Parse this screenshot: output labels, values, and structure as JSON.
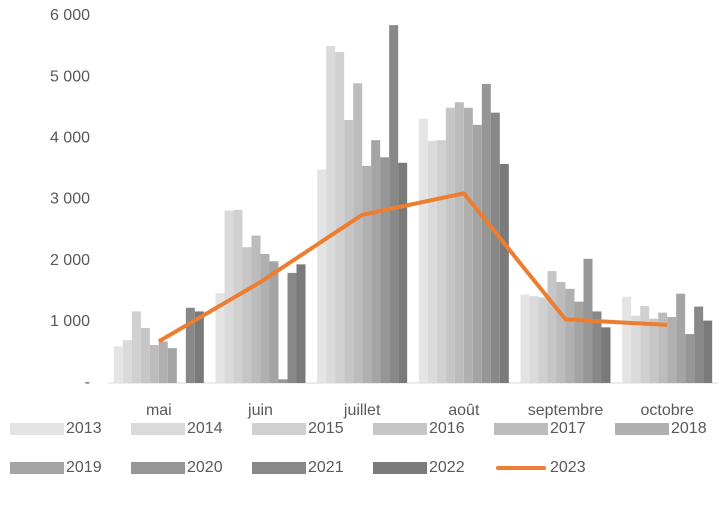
{
  "chart_data": {
    "type": "bar",
    "categories": [
      "mai",
      "juin",
      "juillet",
      "août",
      "septembre",
      "octobre"
    ],
    "series": [
      {
        "name": "2013",
        "color": "#e4e4e4",
        "values": [
          600,
          1470,
          3490,
          4320,
          1450,
          1410
        ]
      },
      {
        "name": "2014",
        "color": "#dadada",
        "values": [
          700,
          2820,
          5510,
          3960,
          1420,
          1100
        ]
      },
      {
        "name": "2015",
        "color": "#d0d0d0",
        "values": [
          1170,
          2830,
          5410,
          3970,
          1400,
          1260
        ]
      },
      {
        "name": "2016",
        "color": "#c6c6c6",
        "values": [
          900,
          2220,
          4300,
          4500,
          1830,
          1050
        ]
      },
      {
        "name": "2017",
        "color": "#bcbcbc",
        "values": [
          620,
          2410,
          4900,
          4590,
          1650,
          1150
        ]
      },
      {
        "name": "2018",
        "color": "#b0b0b0",
        "values": [
          680,
          2110,
          3550,
          4500,
          1540,
          1080
        ]
      },
      {
        "name": "2019",
        "color": "#a4a4a4",
        "values": [
          570,
          1990,
          3970,
          4220,
          1330,
          1460
        ]
      },
      {
        "name": "2020",
        "color": "#969696",
        "values": [
          0,
          60,
          3690,
          4890,
          2030,
          800
        ]
      },
      {
        "name": "2021",
        "color": "#888888",
        "values": [
          1230,
          1800,
          5850,
          4420,
          1170,
          1250
        ]
      },
      {
        "name": "2022",
        "color": "#7a7a7a",
        "values": [
          1170,
          1940,
          3600,
          3580,
          910,
          1020
        ]
      },
      {
        "name": "2023",
        "color": "#ed7d31",
        "type": "line",
        "values": [
          680,
          1650,
          2750,
          3100,
          1040,
          950
        ]
      }
    ],
    "ylim": [
      0,
      6000
    ],
    "yticks": [
      {
        "value": 0,
        "label": "-"
      },
      {
        "value": 1000,
        "label": "1 000"
      },
      {
        "value": 2000,
        "label": "2 000"
      },
      {
        "value": 3000,
        "label": "3 000"
      },
      {
        "value": 4000,
        "label": "4 000"
      },
      {
        "value": 5000,
        "label": "5 000"
      },
      {
        "value": 6000,
        "label": "6 000"
      }
    ],
    "grid": false
  }
}
